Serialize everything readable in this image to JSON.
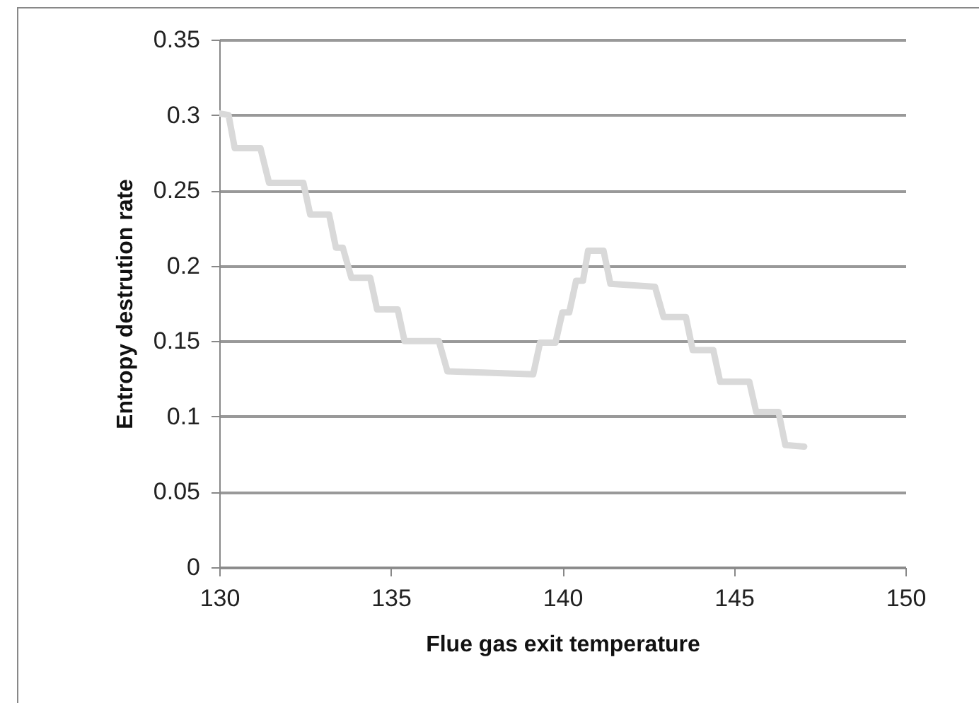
{
  "chart_data": {
    "type": "line",
    "xlabel": "Flue gas exit temperature",
    "ylabel": "Entropy destrution rate",
    "xlim": [
      130,
      150
    ],
    "xticks": [
      130,
      135,
      140,
      145,
      150
    ],
    "ylim": [
      0,
      0.35
    ],
    "yticks": [
      0,
      0.05,
      0.1,
      0.15,
      0.2,
      0.25,
      0.3,
      0.35
    ],
    "grid": "y",
    "marker": "none",
    "line_style": "solid",
    "series": [
      {
        "color": "#d9d9d9",
        "x": [
          130,
          130.27,
          130.45,
          131.2,
          131.45,
          132.45,
          132.65,
          133.2,
          133.4,
          133.6,
          133.85,
          134.4,
          134.6,
          135.2,
          135.4,
          136.4,
          136.65,
          139.15,
          139.35,
          139.8,
          140.0,
          140.2,
          140.4,
          140.6,
          140.75,
          141.2,
          141.4,
          142.7,
          142.95,
          143.6,
          143.8,
          144.4,
          144.6,
          145.45,
          145.65,
          146.3,
          146.5,
          147.05
        ],
        "values": [
          0.301,
          0.3,
          0.278,
          0.278,
          0.255,
          0.255,
          0.234,
          0.234,
          0.212,
          0.212,
          0.192,
          0.192,
          0.171,
          0.171,
          0.15,
          0.15,
          0.13,
          0.128,
          0.149,
          0.149,
          0.169,
          0.169,
          0.19,
          0.19,
          0.21,
          0.21,
          0.188,
          0.186,
          0.166,
          0.166,
          0.144,
          0.144,
          0.123,
          0.123,
          0.103,
          0.103,
          0.081,
          0.08
        ]
      }
    ]
  }
}
